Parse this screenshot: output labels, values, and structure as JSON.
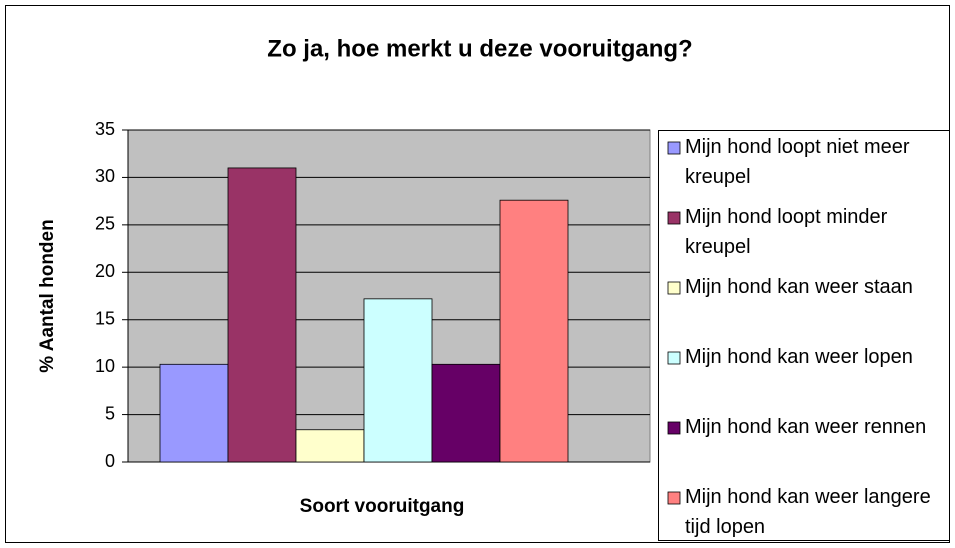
{
  "chart_data": {
    "type": "bar",
    "title": "Zo ja, hoe merkt u deze vooruitgang?",
    "x_label": "Soort vooruitgang",
    "y_label": "% Aantal honden",
    "series": [
      {
        "name": "Mijn hond loopt niet meer kreupel",
        "color": "#9999ff",
        "values": [
          10.3
        ]
      },
      {
        "name": "Mijn hond loopt minder kreupel",
        "color": "#993366",
        "values": [
          31
        ]
      },
      {
        "name": "Mijn hond kan weer staan",
        "color": "#ffffcc",
        "values": [
          3.4
        ]
      },
      {
        "name": "Mijn hond kan weer lopen",
        "color": "#ccffff",
        "values": [
          17.2
        ]
      },
      {
        "name": "Mijn hond kan weer rennen",
        "color": "#660066",
        "values": [
          10.3
        ]
      },
      {
        "name": "Mijn hond kan weer langere tijd lopen",
        "color": "#ff8080",
        "values": [
          27.6
        ]
      }
    ],
    "ylim": [
      0,
      35
    ],
    "yticks": [
      0,
      5,
      10,
      15,
      20,
      25,
      30,
      35
    ],
    "grid": true,
    "legend": "right"
  }
}
